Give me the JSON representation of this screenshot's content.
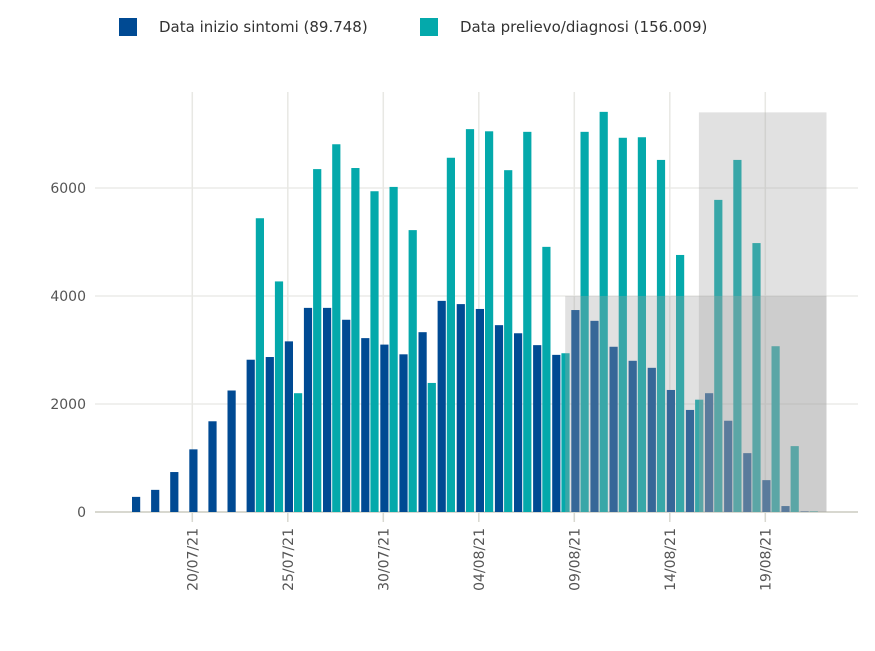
{
  "chart_data": {
    "type": "bar",
    "title": "",
    "xlabel": "",
    "ylabel": "",
    "ylim": [
      0,
      7500
    ],
    "yticks": [
      0,
      2000,
      4000,
      6000
    ],
    "ytick_labels": [
      "0",
      "2000",
      "4000",
      "6000"
    ],
    "xtick_labels": [
      "20/07/21",
      "25/07/21",
      "30/07/21",
      "04/08/21",
      "09/08/21",
      "14/08/21",
      "19/08/21"
    ],
    "categories": [
      "17/07/21",
      "18/07/21",
      "19/07/21",
      "20/07/21",
      "21/07/21",
      "22/07/21",
      "23/07/21",
      "24/07/21",
      "25/07/21",
      "26/07/21",
      "27/07/21",
      "28/07/21",
      "29/07/21",
      "30/07/21",
      "31/07/21",
      "01/08/21",
      "02/08/21",
      "03/08/21",
      "04/08/21",
      "05/08/21",
      "06/08/21",
      "07/08/21",
      "08/08/21",
      "09/08/21",
      "10/08/21",
      "11/08/21",
      "12/08/21",
      "13/08/21",
      "14/08/21",
      "15/08/21",
      "16/08/21",
      "17/08/21",
      "18/08/21",
      "19/08/21",
      "20/08/21",
      "21/08/21"
    ],
    "series": [
      {
        "name": "Data inizio sintomi (89.748)",
        "color": "#004a93",
        "values": [
          280,
          410,
          740,
          1160,
          1680,
          2250,
          2820,
          2870,
          3160,
          3780,
          3780,
          3560,
          3220,
          3100,
          2920,
          3330,
          3910,
          3850,
          3760,
          3460,
          3310,
          3090,
          2910,
          3740,
          3540,
          3060,
          2800,
          2670,
          2260,
          1890,
          2200,
          1690,
          1090,
          590,
          110,
          10
        ]
      },
      {
        "name": "Data prelievo/diagnosi (156.009)",
        "color": "#04a9ab",
        "values": [
          0,
          0,
          0,
          0,
          0,
          0,
          5440,
          4270,
          2200,
          6350,
          6810,
          6370,
          5940,
          6020,
          5220,
          2390,
          6560,
          7090,
          7050,
          6330,
          7040,
          4910,
          2940,
          7040,
          7410,
          6930,
          6940,
          6520,
          4760,
          2080,
          5780,
          6520,
          4980,
          3070,
          1220,
          10
        ]
      }
    ],
    "shaded_regions": [
      {
        "from": "08/08/21",
        "to": "21/08/21",
        "y_from": 0,
        "y_to": 4000
      },
      {
        "from": "15/08/21",
        "to": "21/08/21",
        "y_from": 0,
        "y_to": 7400
      }
    ],
    "grid": true,
    "legend_position": "top"
  }
}
